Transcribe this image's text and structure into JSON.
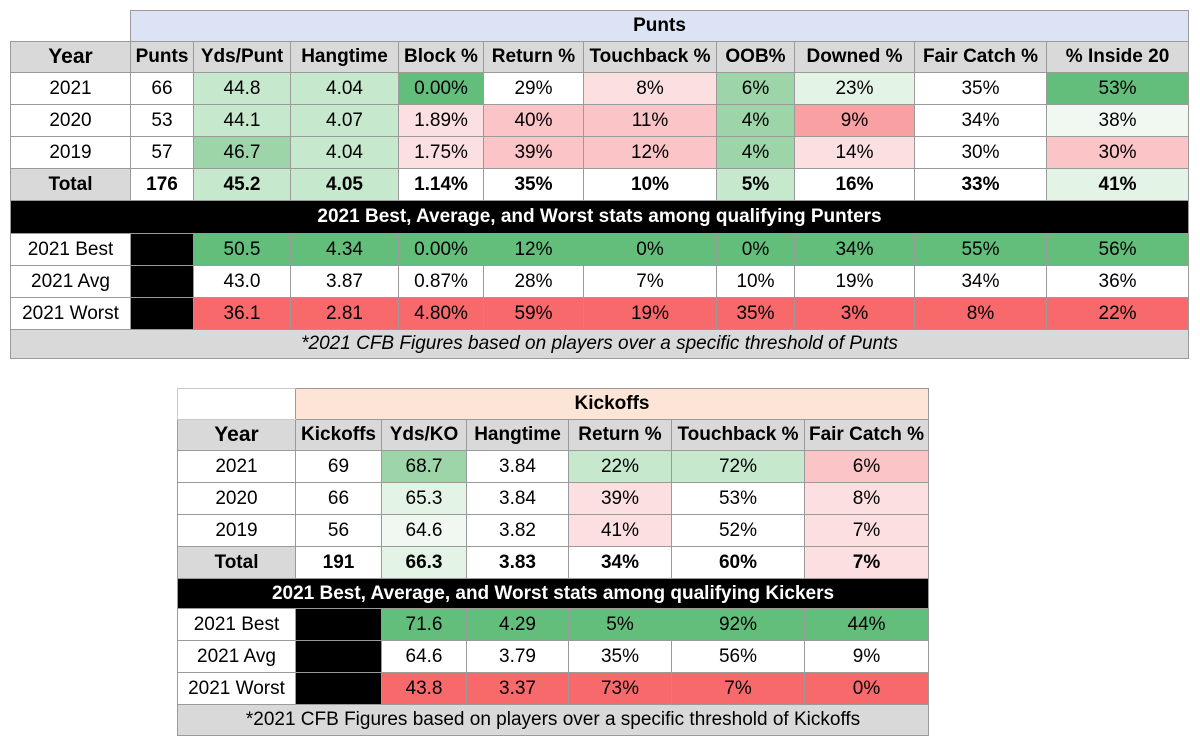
{
  "punts": {
    "title": "Punts",
    "title_bg": "#dce3f5",
    "headers": [
      "Year",
      "Punts",
      "Yds/Punt",
      "Hangtime",
      "Block %",
      "Return %",
      "Touchback %",
      "OOB%",
      "Downed %",
      "Fair Catch %",
      "% Inside 20"
    ],
    "rows": [
      {
        "year": "2021",
        "punts": "66",
        "yds": "44.8",
        "hang": "4.04",
        "block": "0.00%",
        "ret": "29%",
        "tb": "8%",
        "oob": "6%",
        "downed": "23%",
        "fc": "35%",
        "in20": "53%"
      },
      {
        "year": "2020",
        "punts": "53",
        "yds": "44.1",
        "hang": "4.07",
        "block": "1.89%",
        "ret": "40%",
        "tb": "11%",
        "oob": "4%",
        "downed": "9%",
        "fc": "34%",
        "in20": "38%"
      },
      {
        "year": "2019",
        "punts": "57",
        "yds": "46.7",
        "hang": "4.04",
        "block": "1.75%",
        "ret": "39%",
        "tb": "12%",
        "oob": "4%",
        "downed": "14%",
        "fc": "30%",
        "in20": "30%"
      }
    ],
    "total": {
      "year": "Total",
      "punts": "176",
      "yds": "45.2",
      "hang": "4.05",
      "block": "1.14%",
      "ret": "35%",
      "tb": "10%",
      "oob": "5%",
      "downed": "16%",
      "fc": "33%",
      "in20": "41%"
    },
    "banner": "2021 Best, Average, and Worst stats among qualifying Punters",
    "stats": [
      {
        "label": "2021 Best",
        "yds": "50.5",
        "hang": "4.34",
        "block": "0.00%",
        "ret": "12%",
        "tb": "0%",
        "oob": "0%",
        "downed": "34%",
        "fc": "55%",
        "in20": "56%"
      },
      {
        "label": "2021 Avg",
        "yds": "43.0",
        "hang": "3.87",
        "block": "0.87%",
        "ret": "28%",
        "tb": "7%",
        "oob": "10%",
        "downed": "19%",
        "fc": "34%",
        "in20": "36%"
      },
      {
        "label": "2021 Worst",
        "yds": "36.1",
        "hang": "2.81",
        "block": "4.80%",
        "ret": "59%",
        "tb": "19%",
        "oob": "35%",
        "downed": "3%",
        "fc": "8%",
        "in20": "22%"
      }
    ],
    "footer": "*2021 CFB Figures based on players over a specific threshold of Punts"
  },
  "kickoffs": {
    "title": "Kickoffs",
    "title_bg": "#fce4d6",
    "headers": [
      "Year",
      "Kickoffs",
      "Yds/KO",
      "Hangtime",
      "Return %",
      "Touchback %",
      "Fair Catch %"
    ],
    "rows": [
      {
        "year": "2021",
        "ko": "69",
        "yds": "68.7",
        "hang": "3.84",
        "ret": "22%",
        "tb": "72%",
        "fc": "6%"
      },
      {
        "year": "2020",
        "ko": "66",
        "yds": "65.3",
        "hang": "3.84",
        "ret": "39%",
        "tb": "53%",
        "fc": "8%"
      },
      {
        "year": "2019",
        "ko": "56",
        "yds": "64.6",
        "hang": "3.82",
        "ret": "41%",
        "tb": "52%",
        "fc": "7%"
      }
    ],
    "total": {
      "year": "Total",
      "ko": "191",
      "yds": "66.3",
      "hang": "3.83",
      "ret": "34%",
      "tb": "60%",
      "fc": "7%"
    },
    "banner": "2021 Best, Average, and Worst stats among qualifying Kickers",
    "stats": [
      {
        "label": "2021 Best",
        "yds": "71.6",
        "hang": "4.29",
        "ret": "5%",
        "tb": "92%",
        "fc": "44%"
      },
      {
        "label": "2021 Avg",
        "yds": "64.6",
        "hang": "3.79",
        "ret": "35%",
        "tb": "56%",
        "fc": "9%"
      },
      {
        "label": "2021 Worst",
        "yds": "43.8",
        "hang": "3.37",
        "ret": "73%",
        "tb": "7%",
        "fc": "0%"
      }
    ],
    "footer": "*2021 CFB Figures based on players over a specific threshold of Kickoffs"
  }
}
